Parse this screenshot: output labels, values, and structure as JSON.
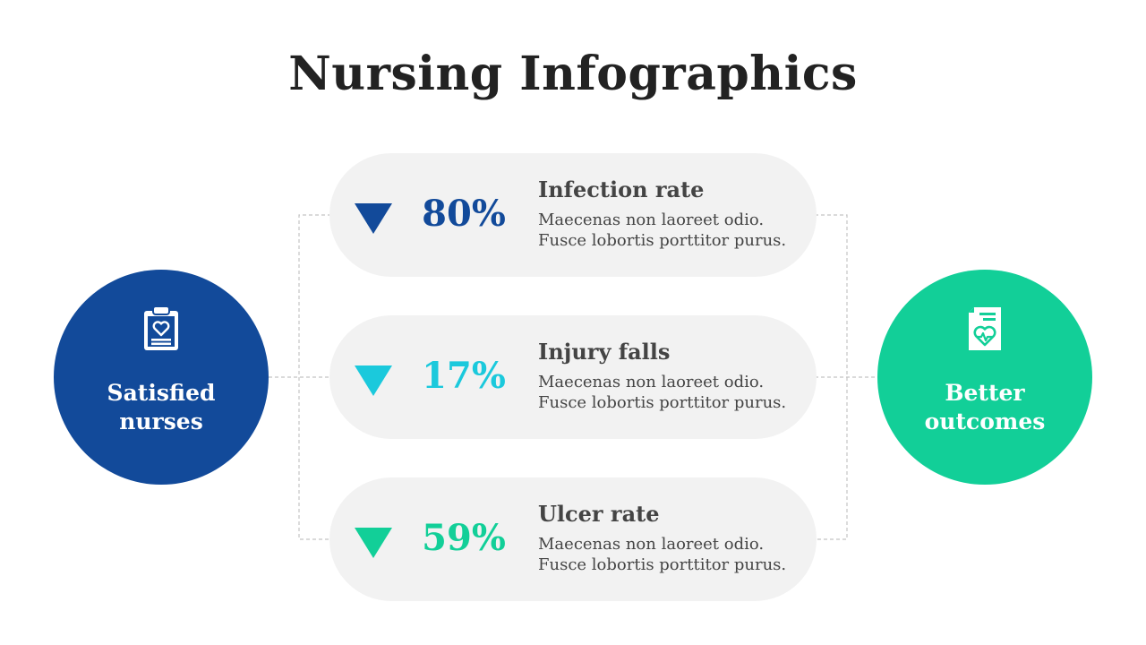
{
  "title": "Nursing Infographics",
  "colors": {
    "blue": "#124a9a",
    "cyan": "#1bc9dc",
    "green": "#12cf98",
    "card_bg": "#f2f2f2",
    "connector": "#c4c4c4"
  },
  "left_hub": {
    "label_lines": [
      "Satisfied",
      "nurses"
    ],
    "icon": "clipboard-heart-icon"
  },
  "right_hub": {
    "label_lines": [
      "Better",
      "outcomes"
    ],
    "icon": "medical-report-heart-icon"
  },
  "items": [
    {
      "percent": "80%",
      "title": "Infection rate",
      "desc_lines": [
        "Maecenas non laoreet odio.",
        "Fusce lobortis porttitor purus."
      ],
      "color": "#124a9a",
      "icon": "triangle-down-icon"
    },
    {
      "percent": "17%",
      "title": "Injury falls",
      "desc_lines": [
        "Maecenas non laoreet odio.",
        "Fusce lobortis porttitor purus."
      ],
      "color": "#1bc9dc",
      "icon": "triangle-down-icon"
    },
    {
      "percent": "59%",
      "title": "Ulcer rate",
      "desc_lines": [
        "Maecenas non laoreet odio.",
        "Fusce lobortis porttitor purus."
      ],
      "color": "#12cf98",
      "icon": "triangle-down-icon"
    }
  ]
}
